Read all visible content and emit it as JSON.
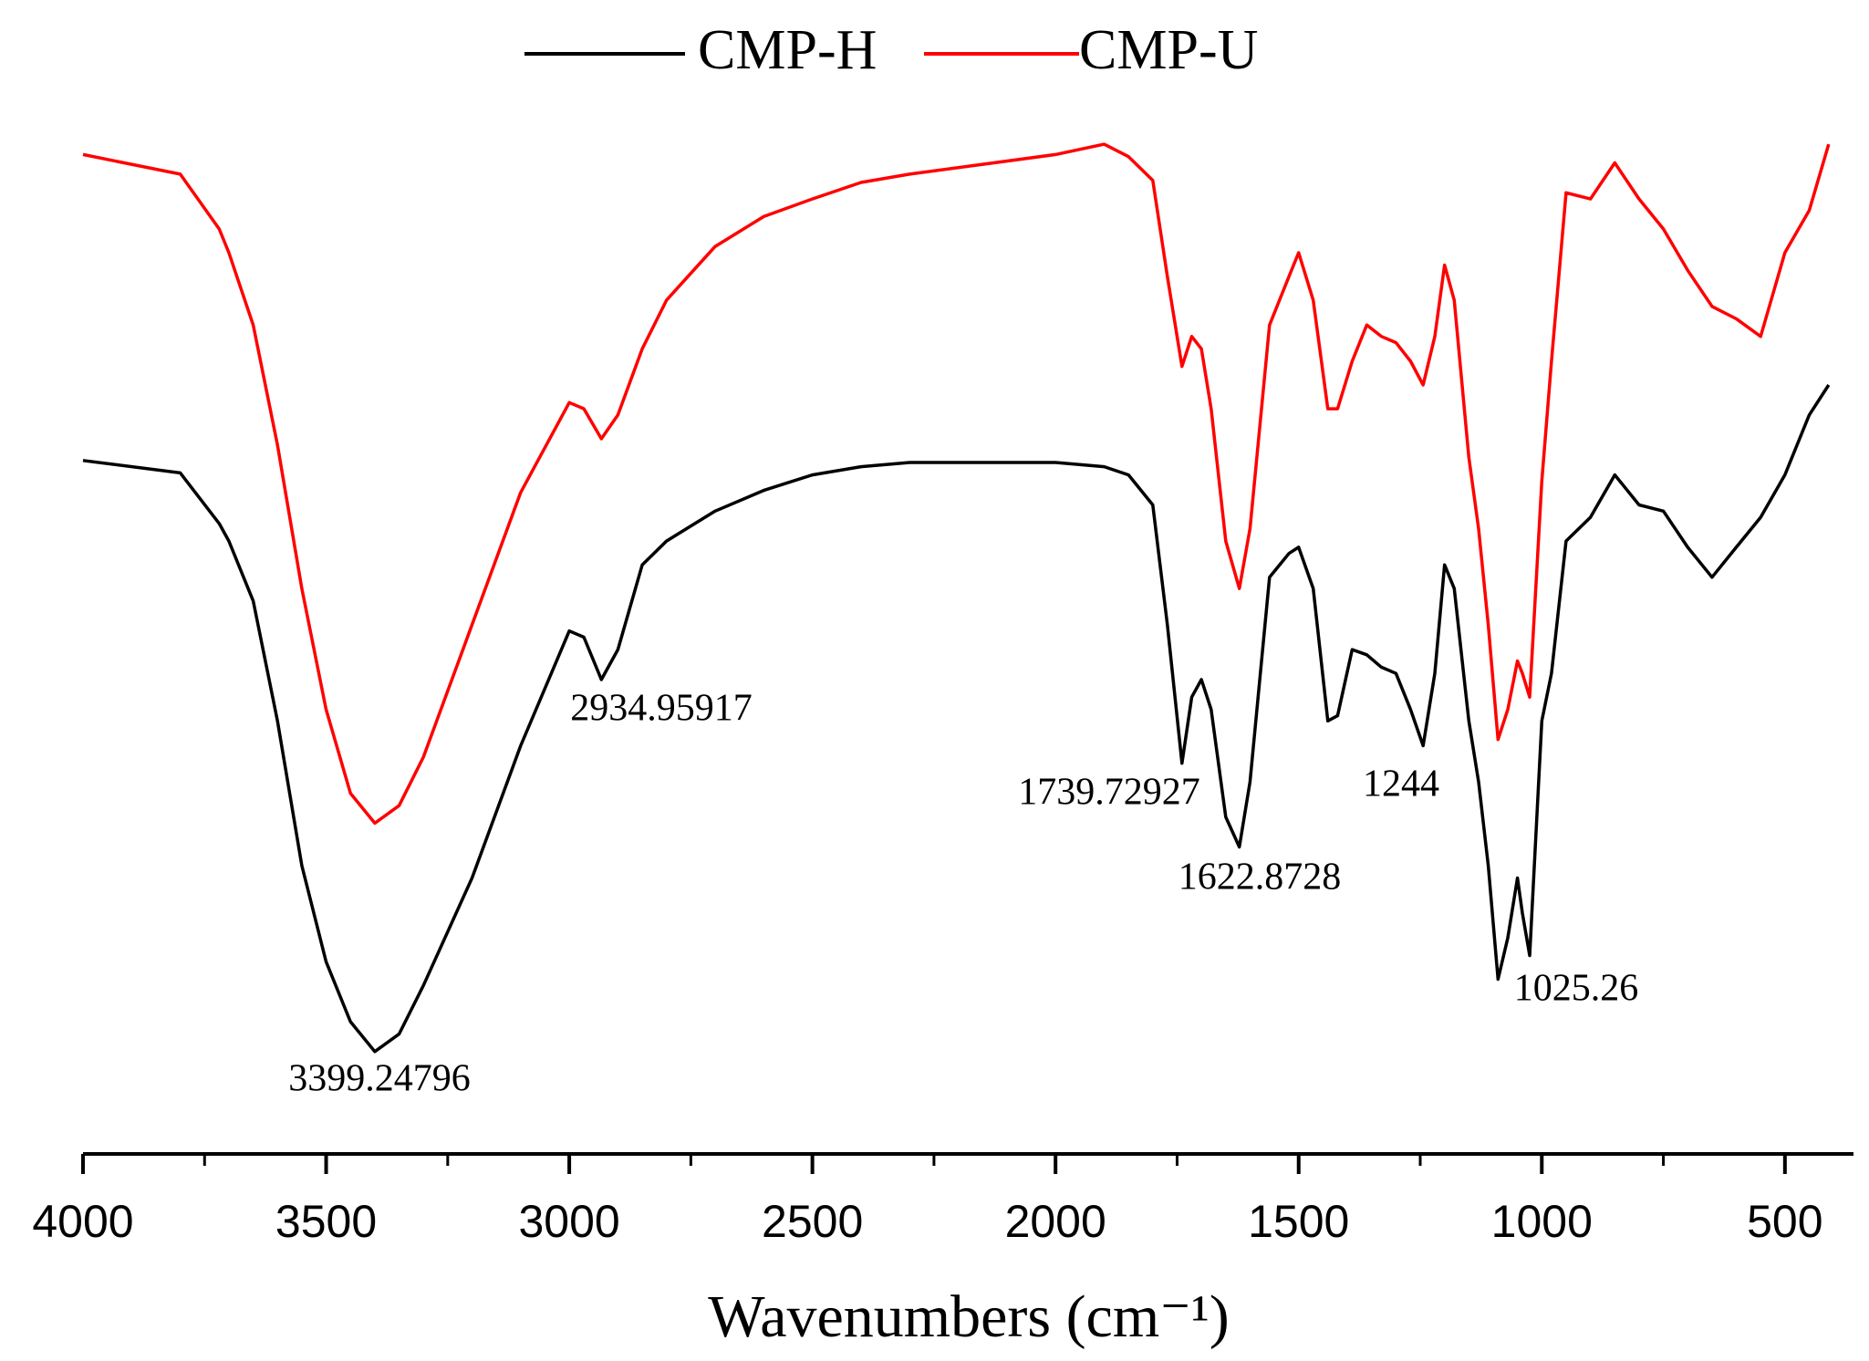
{
  "chart_data": {
    "type": "line",
    "x_label": "Wavenumbers (cm⁻¹)",
    "xlim": [
      4000,
      359
    ],
    "xticks": [
      4000,
      3500,
      3000,
      2500,
      2000,
      1500,
      1000,
      500
    ],
    "xminorticks": [
      3750,
      3250,
      2750,
      2250,
      1750,
      1250,
      750
    ],
    "ylim": [
      0,
      100
    ],
    "x": [
      4000,
      3800,
      3720,
      3700,
      3650,
      3600,
      3550,
      3500,
      3450,
      3400,
      3350,
      3300,
      3200,
      3100,
      3000,
      2970,
      2934,
      2900,
      2850,
      2800,
      2700,
      2600,
      2500,
      2400,
      2300,
      2000,
      1900,
      1850,
      1800,
      1770,
      1740,
      1720,
      1700,
      1680,
      1650,
      1622,
      1600,
      1560,
      1520,
      1500,
      1470,
      1440,
      1420,
      1390,
      1360,
      1330,
      1300,
      1270,
      1244,
      1220,
      1200,
      1180,
      1150,
      1130,
      1110,
      1090,
      1070,
      1050,
      1040,
      1025,
      1000,
      980,
      950,
      900,
      850,
      800,
      750,
      700,
      650,
      600,
      550,
      500,
      450,
      410
    ],
    "series": [
      {
        "name": "CMP-H",
        "color": "#000000",
        "values": [
          67.1,
          65.9,
          61,
          59.3,
          53.5,
          41.9,
          27.9,
          18.6,
          12.8,
          9.9,
          11.6,
          16.3,
          26.7,
          39.5,
          50.6,
          50,
          45.9,
          48.8,
          57,
          59.3,
          62.2,
          64.2,
          65.7,
          66.5,
          66.9,
          66.9,
          66.5,
          65.7,
          62.8,
          51.2,
          37.8,
          44.2,
          45.9,
          43,
          32.6,
          29.7,
          36,
          55.8,
          58.1,
          58.7,
          54.7,
          41.9,
          42.4,
          48.8,
          48.3,
          47.1,
          46.5,
          43,
          39.5,
          46.5,
          57,
          54.7,
          41.9,
          36,
          27.9,
          16.9,
          20.9,
          26.7,
          23.3,
          19.2,
          41.9,
          46.5,
          59.3,
          61.6,
          65.7,
          62.8,
          62.2,
          58.7,
          55.8,
          58.7,
          61.6,
          65.7,
          71.5,
          74.4
        ]
      },
      {
        "name": "CMP-U",
        "color": "#ff0000",
        "values": [
          96.7,
          94.8,
          89.5,
          87.2,
          80.2,
          68.6,
          54.7,
          43,
          34.9,
          32,
          33.7,
          38.4,
          51.2,
          64,
          72.7,
          72.1,
          69.2,
          71.5,
          77.9,
          82.6,
          87.8,
          90.7,
          92.4,
          94,
          94.8,
          96.7,
          97.7,
          96.5,
          94.2,
          84.9,
          76.2,
          79.1,
          77.9,
          72.1,
          59.3,
          54.7,
          60.5,
          80.2,
          84.9,
          87.2,
          82.6,
          72.1,
          72.1,
          76.7,
          80.2,
          79.1,
          78.5,
          76.7,
          74.4,
          79.1,
          86,
          82.6,
          67.4,
          60.5,
          51.2,
          40.1,
          43,
          47.7,
          46.5,
          44.2,
          65.1,
          76.7,
          93,
          92.4,
          95.9,
          92.4,
          89.5,
          85.5,
          82,
          80.8,
          79.1,
          87.2,
          91.3,
          97.7
        ]
      }
    ],
    "annotations": [
      "3399.24796",
      "2934.95917",
      "1739.72927",
      "1622.8728",
      "1244",
      "1025.26"
    ]
  }
}
